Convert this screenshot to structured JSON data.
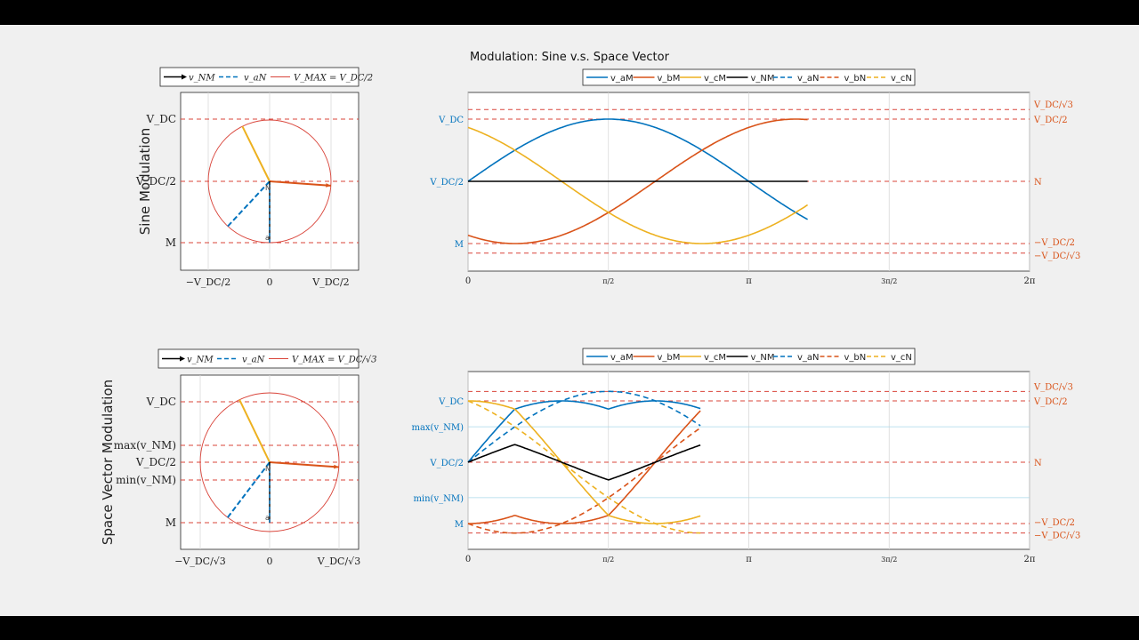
{
  "figure": {
    "title": "Modulation: Sine v.s. Space Vector"
  },
  "colors": {
    "a": "#0072bd",
    "b": "#d95319",
    "c": "#edb120",
    "n": "#000000",
    "ref": "#d9443a",
    "circle": "#d9443a",
    "left_axis": "#0072bd",
    "right_axis": "#d95319",
    "grid": "#d9d9d9",
    "minmax_line": "#a8d8ea"
  },
  "rows": [
    {
      "row_label": "Sine Modulation",
      "phasor_legend": [
        "v_NM",
        "v_aN",
        "V_MAX = V_DC/2"
      ],
      "phasor_yticks": [
        "V_DC",
        "V_DC/2",
        "M"
      ],
      "phasor_xticks": [
        "−V_DC/2",
        "0",
        "V_DC/2"
      ],
      "wave_legend": [
        "v_aM",
        "v_bM",
        "v_cM",
        "v_NM",
        "v_aN",
        "v_bN",
        "v_cN"
      ],
      "wave_left_ticks": [
        "V_DC",
        "V_DC/2",
        "M"
      ],
      "wave_right_ticks": [
        "V_DC/√3",
        "V_DC/2",
        "N",
        "−V_DC/2",
        "−V_DC/√3"
      ],
      "wave_xticks": [
        "0",
        "π/2",
        "π",
        "3π/2",
        "2π"
      ]
    },
    {
      "row_label": "Space Vector Modulation",
      "phasor_legend": [
        "v_NM",
        "v_aN",
        "V_MAX = V_DC/√3"
      ],
      "phasor_yticks": [
        "V_DC",
        "max(v_NM)",
        "V_DC/2",
        "min(v_NM)",
        "M"
      ],
      "phasor_xticks": [
        "−V_DC/√3",
        "0",
        "V_DC/√3"
      ],
      "wave_legend": [
        "v_aM",
        "v_bM",
        "v_cM",
        "v_NM",
        "v_aN",
        "v_bN",
        "v_cN"
      ],
      "wave_left_ticks": [
        "V_DC",
        "max(v_NM)",
        "V_DC/2",
        "min(v_NM)",
        "M"
      ],
      "wave_right_ticks": [
        "V_DC/√3",
        "V_DC/2",
        "N",
        "−V_DC/2",
        "−V_DC/√3"
      ],
      "wave_xticks": [
        "0",
        "π/2",
        "π",
        "3π/2",
        "2π"
      ]
    }
  ],
  "chart_data": [
    {
      "type": "line",
      "title": "Sine Modulation",
      "xlim": [
        0,
        6.2832
      ],
      "ylim": [
        -0.78,
        0.73
      ],
      "x_end": 3.8,
      "reference_lines_y": [
        0.577,
        0.5,
        0,
        -0.5,
        -0.577
      ],
      "series": [
        {
          "name": "v_aM",
          "style": "solid",
          "color_key": "a",
          "formula": "0.5*sin(t)"
        },
        {
          "name": "v_bM",
          "style": "solid",
          "color_key": "b",
          "formula": "0.5*sin(t-2π/3)"
        },
        {
          "name": "v_cM",
          "style": "solid",
          "color_key": "c",
          "formula": "0.5*sin(t+2π/3)"
        },
        {
          "name": "v_NM",
          "style": "solid",
          "color_key": "n",
          "formula": "0"
        }
      ]
    },
    {
      "type": "line",
      "title": "Space Vector Modulation",
      "xlim": [
        0,
        6.2832
      ],
      "ylim": [
        -0.66,
        0.66
      ],
      "x_end": 2.6,
      "reference_lines_y": [
        0.577,
        0.5,
        0,
        -0.5,
        -0.577
      ],
      "series": [
        {
          "name": "v_aM",
          "style": "solid",
          "color_key": "a",
          "formula": "v_aN + v_NM"
        },
        {
          "name": "v_bM",
          "style": "solid",
          "color_key": "b",
          "formula": "v_bN + v_NM"
        },
        {
          "name": "v_cM",
          "style": "solid",
          "color_key": "c",
          "formula": "v_cN + v_NM"
        },
        {
          "name": "v_NM",
          "style": "solid",
          "color_key": "n",
          "formula": "-(max+min)/2 of phase voltages"
        },
        {
          "name": "v_aN",
          "style": "dashed",
          "color_key": "a",
          "formula": "0.577*sin(t)"
        },
        {
          "name": "v_bN",
          "style": "dashed",
          "color_key": "b",
          "formula": "0.577*sin(t-2π/3)"
        },
        {
          "name": "v_cN",
          "style": "dashed",
          "color_key": "c",
          "formula": "0.577*sin(t+2π/3)"
        }
      ]
    }
  ]
}
